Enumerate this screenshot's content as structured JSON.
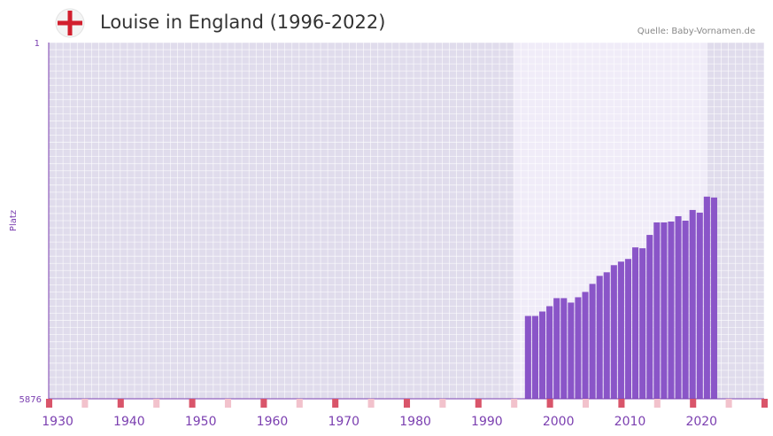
{
  "header": {
    "title": "Louise in England (1996-2022)",
    "source": "Quelle: Baby-Vornamen.de",
    "flag_icon": "england-flag-icon"
  },
  "chart_data": {
    "type": "bar",
    "title": "Louise in England (1996-2022)",
    "ylabel": "Platz",
    "xlabel": "",
    "y_axis": {
      "top_label": "1",
      "bottom_label": "5876",
      "reversed": true,
      "range": [
        1,
        5876
      ]
    },
    "x_range": [
      1929,
      2029
    ],
    "highlight_range": [
      1994,
      2021
    ],
    "x_ticks": [
      "1930",
      "1940",
      "1950",
      "1960",
      "1970",
      "1980",
      "1990",
      "2000",
      "2010",
      "2020"
    ],
    "x_tick_values": [
      1930,
      1940,
      1950,
      1960,
      1970,
      1980,
      1990,
      2000,
      2010,
      2020
    ],
    "categories": [
      1996,
      1997,
      1998,
      1999,
      2000,
      2001,
      2002,
      2003,
      2004,
      2005,
      2006,
      2007,
      2008,
      2009,
      2010,
      2011,
      2012,
      2013,
      2014,
      2015,
      2016,
      2017,
      2018,
      2019,
      2020,
      2021,
      2022
    ],
    "values": [
      93,
      93,
      98,
      104,
      113,
      113,
      108,
      114,
      120,
      129,
      138,
      142,
      150,
      154,
      157,
      170,
      169,
      184,
      198,
      198,
      199,
      205,
      200,
      212,
      209,
      227,
      226
    ],
    "value_scale_note": "bar height in chart units where 0 = rank 5876 (bottom) and ~400 = rank 1 (top); estimated from pixel heights",
    "colors": {
      "bar": "#8a55c8",
      "plot_bg": "#e0dcec",
      "highlight_bg": "#f0ecf8",
      "axis": "#7b3fb0",
      "marker_strong": "#d9556a",
      "marker_light": "#f2c2cc"
    }
  }
}
